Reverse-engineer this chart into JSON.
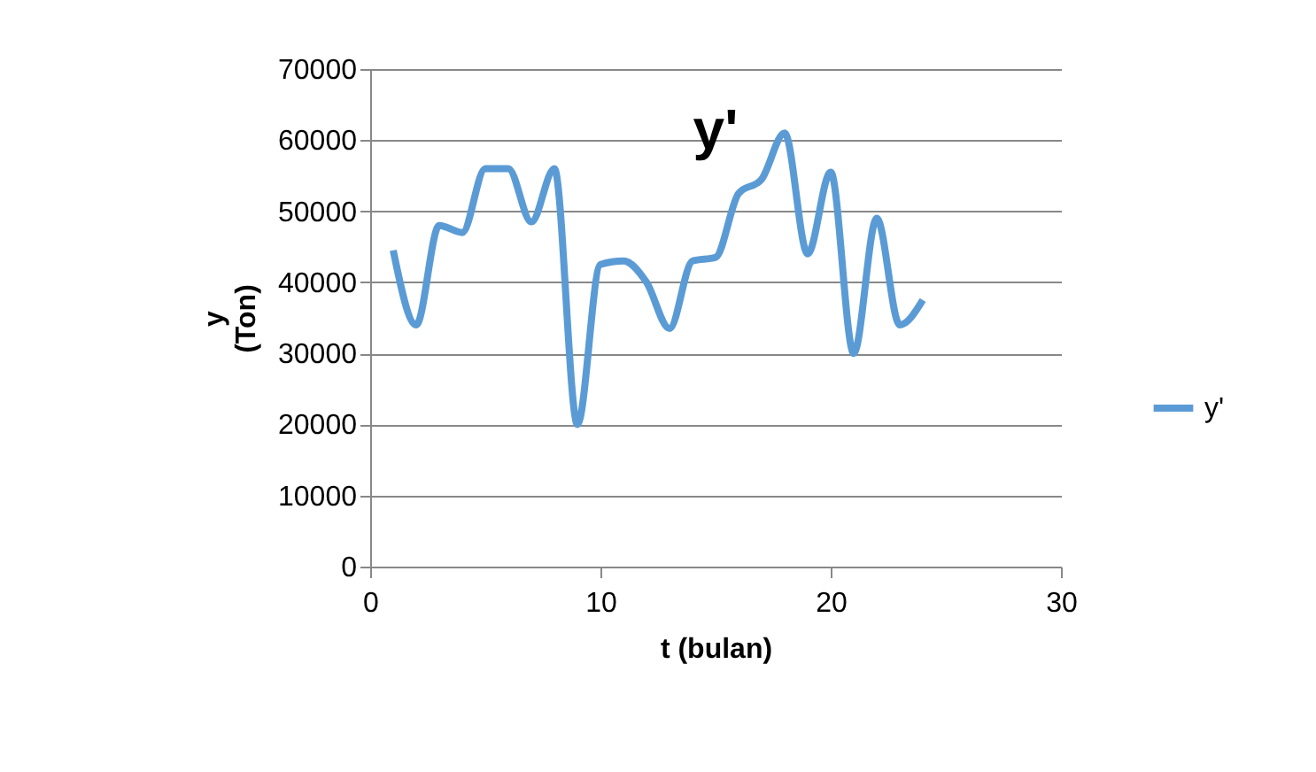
{
  "chart_data": {
    "type": "line",
    "title": "y'",
    "xlabel": "t (bulan)",
    "ylabel": "y\n(Ton)",
    "x": [
      1,
      2,
      3,
      4,
      5,
      6,
      7,
      8,
      9,
      10,
      11,
      12,
      13,
      14,
      15,
      16,
      17,
      18,
      19,
      20,
      21,
      22,
      23,
      24
    ],
    "series": [
      {
        "name": "y'",
        "color": "#5b9bd5",
        "values": [
          44500,
          34000,
          48000,
          47000,
          56000,
          56000,
          48500,
          56000,
          20000,
          42500,
          43000,
          40000,
          33500,
          43000,
          43500,
          52500,
          54500,
          61000,
          44000,
          55500,
          30000,
          49000,
          34000,
          37500
        ]
      }
    ],
    "xlim": [
      0,
      30
    ],
    "xticks": [
      0,
      10,
      20,
      30
    ],
    "ylim": [
      0,
      70000
    ],
    "yticks": [
      0,
      10000,
      20000,
      30000,
      40000,
      50000,
      60000,
      70000
    ],
    "grid": "y",
    "legend": "right",
    "marker": "none",
    "line_style": "solid"
  }
}
